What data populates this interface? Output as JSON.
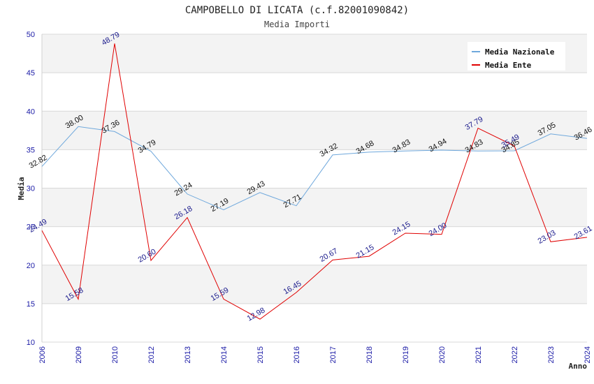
{
  "chart_data": {
    "type": "line",
    "title": "CAMPOBELLO DI LICATA (c.f.82001090842)",
    "subtitle": "Media Importi",
    "xlabel": "Anno",
    "ylabel": "Media",
    "ylim": [
      10,
      50
    ],
    "yticks": [
      10,
      15,
      20,
      25,
      30,
      35,
      40,
      45,
      50
    ],
    "categories": [
      "2006",
      "2009",
      "2010",
      "2012",
      "2013",
      "2014",
      "2015",
      "2016",
      "2017",
      "2018",
      "2019",
      "2020",
      "2021",
      "2022",
      "2023",
      "2024"
    ],
    "legend_position": "top-right",
    "series": [
      {
        "name": "Media Nazionale",
        "color": "#6fa8dc",
        "label_color": "#111111",
        "values": [
          32.82,
          38.0,
          37.36,
          34.79,
          29.24,
          27.19,
          29.43,
          27.71,
          34.32,
          34.68,
          34.83,
          34.94,
          34.83,
          34.85,
          37.05,
          36.46
        ],
        "labels": [
          "32.82",
          "38.00",
          "37.36",
          "34.79",
          "29.24",
          "27.19",
          "29.43",
          "27.71",
          "34.32",
          "34.68",
          "34.83",
          "34.94",
          "34.83",
          "34.85",
          "37.05",
          "36.46"
        ]
      },
      {
        "name": "Media Ente",
        "color": "#e00000",
        "label_color": "#1a1a8c",
        "values": [
          24.49,
          15.58,
          48.79,
          20.6,
          26.18,
          15.59,
          12.98,
          16.45,
          20.67,
          21.15,
          24.15,
          24.0,
          37.79,
          35.49,
          23.03,
          23.61
        ],
        "labels": [
          "24.49",
          "15.58",
          "48.79",
          "20.60",
          "26.18",
          "15.59",
          "12.98",
          "16.45",
          "20.67",
          "21.15",
          "24.15",
          "24.00",
          "37.79",
          "35.49",
          "23.03",
          "23.61"
        ]
      }
    ]
  }
}
